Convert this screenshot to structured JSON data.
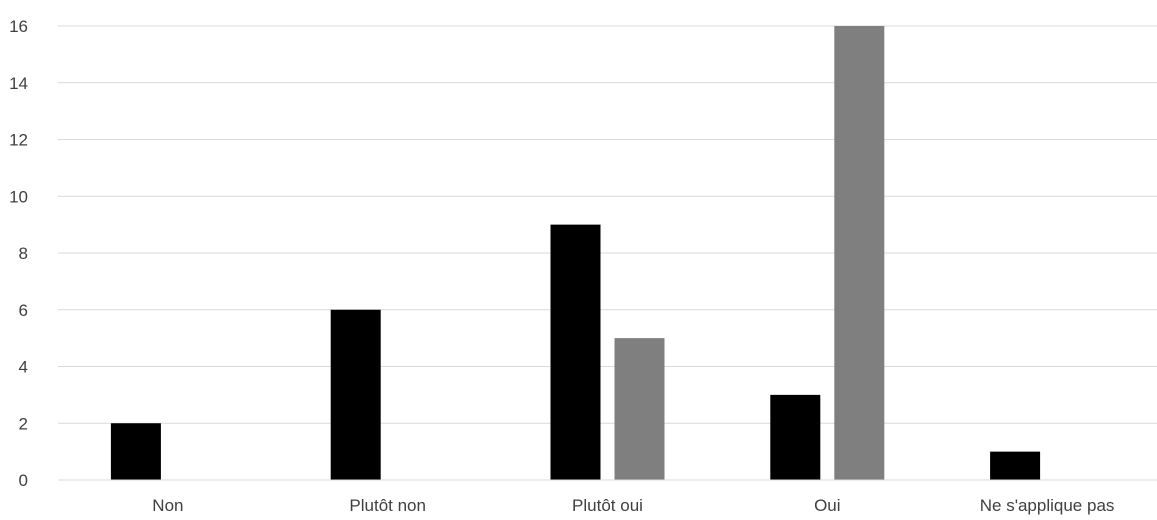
{
  "chart_data": {
    "type": "bar",
    "categories": [
      "Non",
      "Plutôt non",
      "Plutôt oui",
      "Oui",
      "Ne s'applique pas"
    ],
    "series": [
      {
        "values": [
          2,
          6,
          9,
          3,
          1
        ],
        "color": "#000000"
      },
      {
        "values": [
          0,
          0,
          5,
          16,
          0
        ],
        "color": "#7f7f7f"
      }
    ],
    "title": "",
    "xlabel": "",
    "ylabel": "",
    "ylim": [
      0,
      16
    ],
    "yticks": [
      0,
      2,
      4,
      6,
      8,
      10,
      12,
      14,
      16
    ],
    "grid": true,
    "legend": "none"
  }
}
